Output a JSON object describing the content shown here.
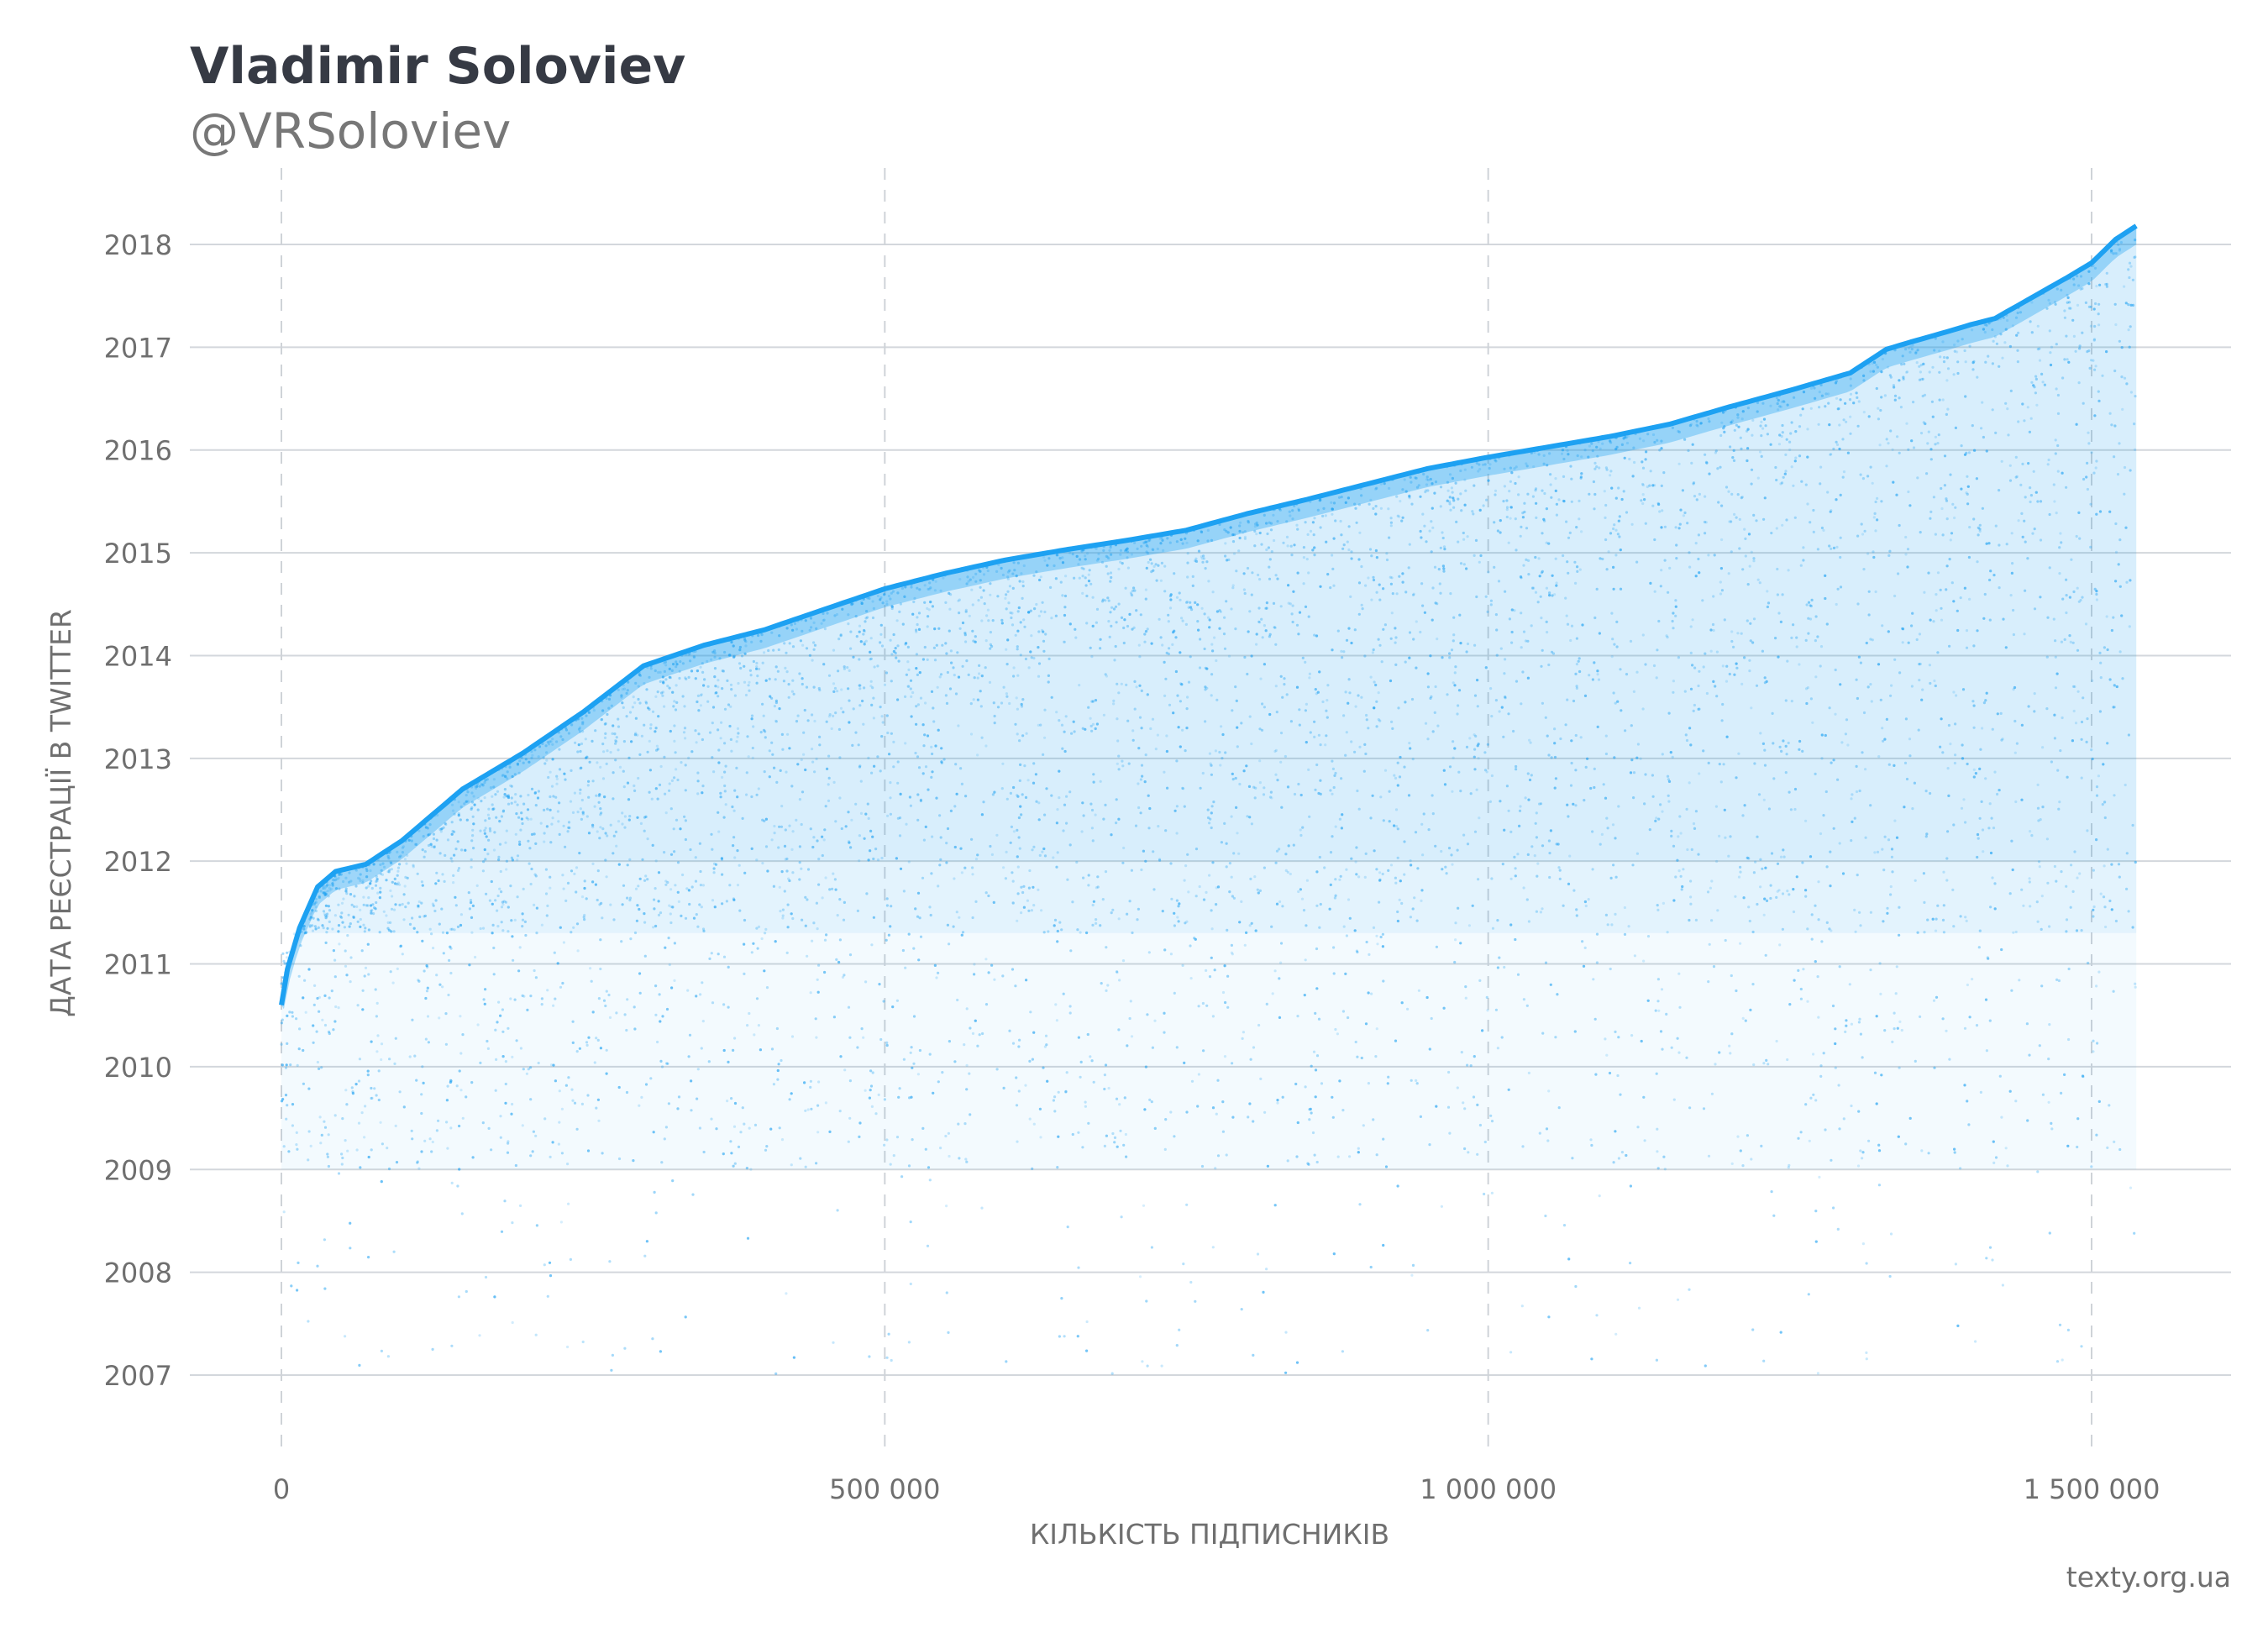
{
  "header": {
    "title": "Vladimir Soloviev",
    "subtitle": "@VRSoloviev"
  },
  "footer": {
    "source": "texty.org.ua"
  },
  "chart_data": {
    "type": "scatter",
    "xlabel": "КІЛЬКІСТЬ ПІДПИСНИКІВ",
    "ylabel": "ДАТА РЕЄСТРАЦІЇ В TWITTER",
    "xlim": [
      -75000,
      1610000
    ],
    "ylim": [
      2006.2,
      2018.8
    ],
    "x_ticks": [
      0,
      500000,
      1000000,
      1500000
    ],
    "x_tick_labels": [
      "0",
      "500 000",
      "1 000 000",
      "1 500 000"
    ],
    "y_ticks": [
      2007,
      2008,
      2009,
      2010,
      2011,
      2012,
      2013,
      2014,
      2015,
      2016,
      2017,
      2018
    ],
    "y_tick_labels": [
      "2007",
      "2008",
      "2009",
      "2010",
      "2011",
      "2012",
      "2013",
      "2014",
      "2015",
      "2016",
      "2017",
      "2018"
    ],
    "grid": {
      "horizontal": "solid",
      "vertical": "dashed"
    },
    "point_color": "#1da1f2",
    "description_points_note": "Upper envelope of follower registration date (x = follower index, y = registration year)",
    "envelope": {
      "x": [
        0,
        5000,
        15000,
        30000,
        45000,
        70000,
        100000,
        150000,
        200000,
        250000,
        300000,
        350000,
        400000,
        450000,
        500000,
        550000,
        600000,
        650000,
        700000,
        750000,
        800000,
        850000,
        900000,
        950000,
        1000000,
        1050000,
        1100000,
        1150000,
        1200000,
        1250000,
        1300000,
        1330000,
        1350000,
        1380000,
        1400000,
        1420000,
        1450000,
        1480000,
        1500000,
        1520000,
        1537000
      ],
      "y": [
        2010.6,
        2010.95,
        2011.35,
        2011.75,
        2011.9,
        2011.97,
        2012.2,
        2012.7,
        2013.05,
        2013.45,
        2013.9,
        2014.1,
        2014.25,
        2014.45,
        2014.65,
        2014.8,
        2014.93,
        2015.03,
        2015.12,
        2015.22,
        2015.38,
        2015.52,
        2015.67,
        2015.82,
        2015.93,
        2016.03,
        2016.13,
        2016.25,
        2016.42,
        2016.58,
        2016.75,
        2016.98,
        2017.05,
        2017.15,
        2017.22,
        2017.28,
        2017.48,
        2017.68,
        2017.82,
        2018.05,
        2018.18
      ]
    },
    "series": [
      {
        "name": "",
        "point_count_approx": 1537000
      }
    ]
  }
}
